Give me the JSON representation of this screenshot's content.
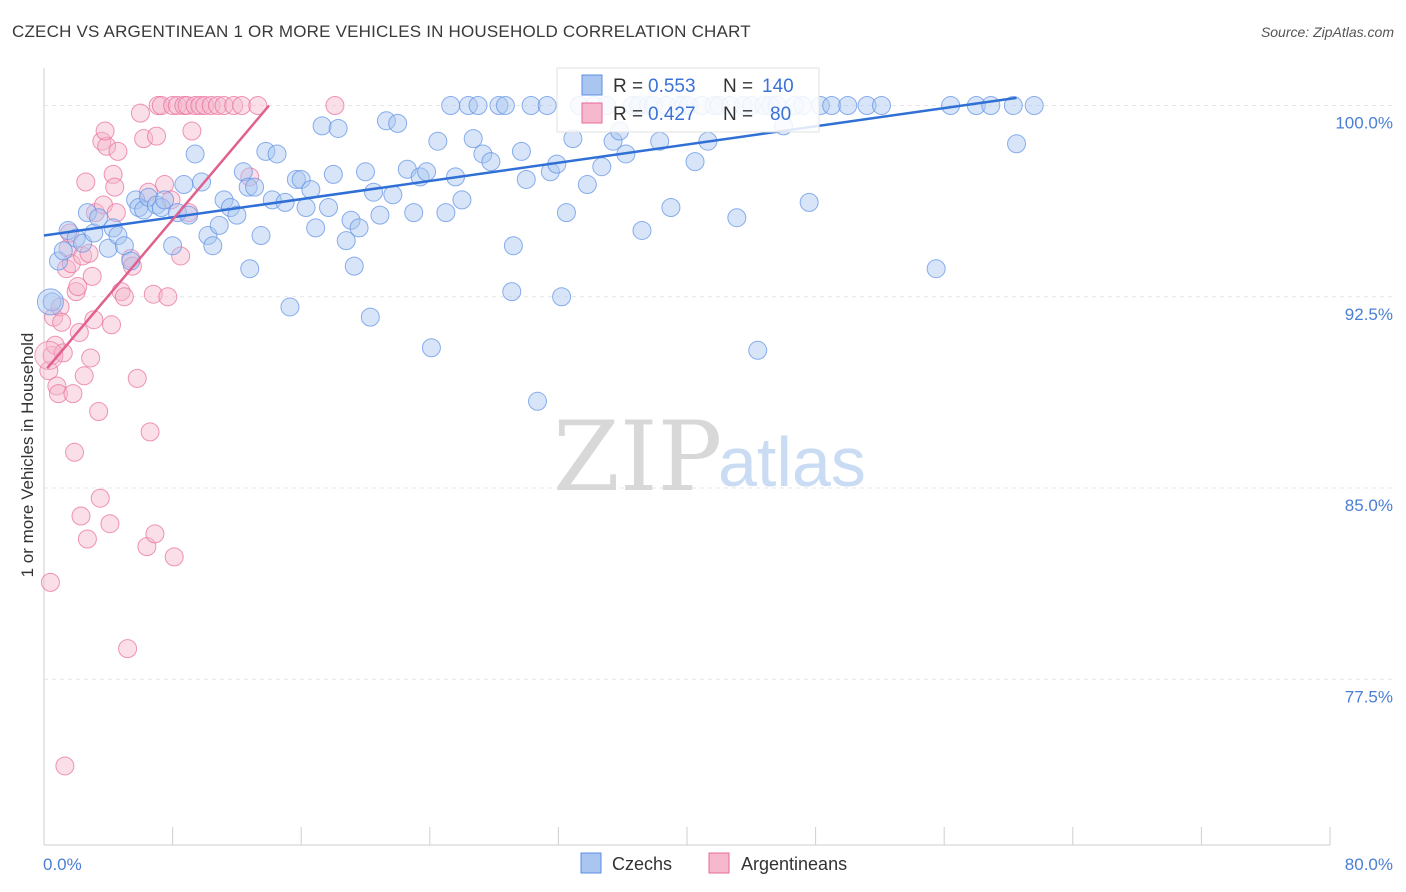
{
  "title": "CZECH VS ARGENTINEAN 1 OR MORE VEHICLES IN HOUSEHOLD CORRELATION CHART",
  "source": "Source: ZipAtlas.com",
  "watermark": {
    "zip": "ZIP",
    "atlas": "atlas"
  },
  "colors": {
    "blue": "#5b8ee6",
    "blue_fill": "#a9c6f0",
    "pink": "#e96a9a",
    "pink_fill": "#f5b8cc",
    "axis_text": "#4a7fd4"
  },
  "legend": {
    "blue": {
      "r_label": "R =",
      "r_value": "0.553",
      "n_label": "N =",
      "n_value": "140"
    },
    "pink": {
      "r_label": "R =",
      "r_value": "0.427",
      "n_label": "N =",
      "n_value": "80"
    }
  },
  "chart_data": {
    "type": "scatter",
    "title": "CZECH VS ARGENTINEAN 1 OR MORE VEHICLES IN HOUSEHOLD CORRELATION CHART",
    "xlabel": "",
    "ylabel": "1 or more Vehicles in Household",
    "xlim": [
      0,
      80
    ],
    "ylim": [
      71,
      101
    ],
    "x_tick_labels": [
      "0.0%",
      "80.0%"
    ],
    "y_ticks": [
      77.5,
      85.0,
      92.5,
      100.0
    ],
    "y_tick_labels": [
      "77.5%",
      "85.0%",
      "92.5%",
      "100.0%"
    ],
    "series": [
      {
        "name": "Czechs",
        "color": "#5b8ee6",
        "trend": {
          "x": [
            0,
            60.5
          ],
          "y": [
            94.9,
            100.3
          ]
        },
        "points": [
          [
            0.5,
            92.3
          ],
          [
            0.9,
            93.9
          ],
          [
            1.2,
            94.3
          ],
          [
            1.5,
            95.1
          ],
          [
            2.0,
            94.8
          ],
          [
            2.4,
            94.6
          ],
          [
            2.7,
            95.8
          ],
          [
            3.1,
            95.0
          ],
          [
            3.4,
            95.6
          ],
          [
            4.0,
            94.4
          ],
          [
            4.3,
            95.2
          ],
          [
            4.6,
            94.9
          ],
          [
            5.0,
            94.5
          ],
          [
            5.4,
            93.9
          ],
          [
            5.7,
            96.3
          ],
          [
            5.9,
            96.0
          ],
          [
            6.2,
            95.9
          ],
          [
            6.5,
            96.4
          ],
          [
            7.0,
            96.1
          ],
          [
            7.3,
            96.0
          ],
          [
            7.5,
            96.3
          ],
          [
            8.0,
            94.5
          ],
          [
            8.3,
            95.8
          ],
          [
            8.7,
            96.9
          ],
          [
            9.0,
            95.7
          ],
          [
            9.4,
            98.1
          ],
          [
            9.8,
            97.0
          ],
          [
            10.2,
            94.9
          ],
          [
            10.5,
            94.5
          ],
          [
            10.9,
            95.3
          ],
          [
            11.2,
            96.3
          ],
          [
            11.6,
            96.0
          ],
          [
            12.0,
            95.7
          ],
          [
            12.4,
            97.4
          ],
          [
            12.7,
            96.8
          ],
          [
            12.8,
            93.6
          ],
          [
            13.1,
            96.8
          ],
          [
            13.5,
            94.9
          ],
          [
            13.8,
            98.2
          ],
          [
            14.2,
            96.3
          ],
          [
            14.5,
            98.1
          ],
          [
            15.0,
            96.2
          ],
          [
            15.3,
            92.1
          ],
          [
            15.7,
            97.1
          ],
          [
            16.0,
            97.1
          ],
          [
            16.3,
            96.0
          ],
          [
            16.6,
            96.7
          ],
          [
            16.9,
            95.2
          ],
          [
            17.3,
            99.2
          ],
          [
            17.7,
            96.0
          ],
          [
            18.0,
            97.3
          ],
          [
            18.3,
            99.1
          ],
          [
            18.8,
            94.7
          ],
          [
            19.1,
            95.5
          ],
          [
            19.3,
            93.7
          ],
          [
            19.6,
            95.2
          ],
          [
            20.0,
            97.4
          ],
          [
            20.3,
            91.7
          ],
          [
            20.5,
            96.6
          ],
          [
            20.9,
            95.7
          ],
          [
            21.3,
            99.4
          ],
          [
            21.7,
            96.5
          ],
          [
            22.0,
            99.3
          ],
          [
            22.6,
            97.5
          ],
          [
            23.0,
            95.8
          ],
          [
            23.4,
            97.2
          ],
          [
            23.8,
            97.4
          ],
          [
            24.1,
            90.5
          ],
          [
            24.5,
            98.6
          ],
          [
            25.0,
            95.8
          ],
          [
            25.3,
            100.0
          ],
          [
            25.6,
            97.2
          ],
          [
            26.0,
            96.3
          ],
          [
            26.4,
            100.0
          ],
          [
            26.7,
            98.7
          ],
          [
            27.0,
            100.0
          ],
          [
            27.3,
            98.1
          ],
          [
            27.8,
            97.8
          ],
          [
            28.3,
            100.0
          ],
          [
            28.7,
            100.0
          ],
          [
            29.2,
            94.5
          ],
          [
            29.1,
            92.7
          ],
          [
            29.7,
            98.2
          ],
          [
            30.0,
            97.1
          ],
          [
            30.3,
            100.0
          ],
          [
            30.7,
            88.4
          ],
          [
            31.3,
            100.0
          ],
          [
            31.5,
            97.4
          ],
          [
            31.9,
            97.7
          ],
          [
            32.2,
            92.5
          ],
          [
            32.5,
            95.8
          ],
          [
            32.9,
            98.7
          ],
          [
            33.3,
            100.0
          ],
          [
            33.8,
            96.9
          ],
          [
            34.2,
            100.0
          ],
          [
            34.7,
            97.6
          ],
          [
            35.0,
            100.0
          ],
          [
            35.4,
            98.6
          ],
          [
            35.8,
            99.0
          ],
          [
            36.2,
            98.1
          ],
          [
            36.6,
            100.0
          ],
          [
            37.0,
            100.0
          ],
          [
            37.2,
            95.1
          ],
          [
            37.6,
            100.0
          ],
          [
            37.9,
            100.0
          ],
          [
            38.3,
            98.6
          ],
          [
            38.7,
            100.0
          ],
          [
            39.0,
            96.0
          ],
          [
            39.5,
            100.0
          ],
          [
            39.8,
            100.0
          ],
          [
            40.1,
            100.0
          ],
          [
            40.5,
            97.8
          ],
          [
            40.9,
            100.0
          ],
          [
            41.3,
            98.6
          ],
          [
            41.7,
            100.0
          ],
          [
            42.0,
            100.0
          ],
          [
            42.7,
            100.0
          ],
          [
            43.1,
            95.6
          ],
          [
            43.5,
            100.0
          ],
          [
            44.0,
            100.0
          ],
          [
            44.4,
            90.4
          ],
          [
            44.8,
            100.0
          ],
          [
            45.2,
            100.0
          ],
          [
            45.6,
            100.0
          ],
          [
            46.0,
            99.2
          ],
          [
            46.7,
            100.0
          ],
          [
            47.2,
            100.0
          ],
          [
            47.6,
            96.2
          ],
          [
            48.3,
            100.0
          ],
          [
            49.0,
            100.0
          ],
          [
            50.0,
            100.0
          ],
          [
            51.2,
            100.0
          ],
          [
            52.1,
            100.0
          ],
          [
            55.5,
            93.6
          ],
          [
            56.4,
            100.0
          ],
          [
            58.0,
            100.0
          ],
          [
            58.9,
            100.0
          ],
          [
            60.3,
            100.0
          ],
          [
            60.5,
            98.5
          ],
          [
            61.6,
            100.0
          ]
        ]
      },
      {
        "name": "Argentineans",
        "color": "#e96a9a",
        "trend": {
          "x": [
            0.2,
            14.0
          ],
          "y": [
            89.7,
            100.0
          ]
        },
        "points": [
          [
            0.3,
            89.6
          ],
          [
            0.4,
            81.3
          ],
          [
            0.5,
            90.2
          ],
          [
            0.6,
            91.7
          ],
          [
            0.7,
            90.6
          ],
          [
            0.8,
            89.0
          ],
          [
            0.9,
            88.7
          ],
          [
            1.0,
            92.1
          ],
          [
            1.1,
            91.5
          ],
          [
            1.2,
            90.3
          ],
          [
            1.4,
            93.6
          ],
          [
            1.5,
            94.4
          ],
          [
            1.6,
            95.0
          ],
          [
            1.7,
            93.8
          ],
          [
            1.8,
            88.7
          ],
          [
            1.9,
            86.4
          ],
          [
            2.0,
            92.7
          ],
          [
            2.1,
            92.9
          ],
          [
            2.2,
            91.1
          ],
          [
            2.3,
            83.9
          ],
          [
            2.4,
            94.1
          ],
          [
            2.5,
            89.4
          ],
          [
            2.6,
            97.0
          ],
          [
            2.7,
            83.0
          ],
          [
            2.8,
            94.2
          ],
          [
            2.9,
            90.1
          ],
          [
            3.0,
            93.3
          ],
          [
            3.1,
            91.6
          ],
          [
            3.2,
            95.8
          ],
          [
            3.4,
            88.0
          ],
          [
            3.5,
            84.6
          ],
          [
            3.6,
            98.6
          ],
          [
            3.7,
            96.1
          ],
          [
            3.9,
            98.4
          ],
          [
            4.1,
            83.6
          ],
          [
            4.2,
            91.4
          ],
          [
            4.3,
            97.3
          ],
          [
            4.4,
            96.8
          ],
          [
            4.5,
            95.8
          ],
          [
            4.6,
            98.2
          ],
          [
            4.8,
            92.7
          ],
          [
            5.0,
            92.5
          ],
          [
            5.2,
            78.7
          ],
          [
            5.4,
            94.0
          ],
          [
            5.5,
            93.7
          ],
          [
            5.8,
            89.3
          ],
          [
            6.0,
            99.7
          ],
          [
            6.2,
            98.7
          ],
          [
            6.4,
            82.7
          ],
          [
            6.5,
            96.6
          ],
          [
            6.6,
            87.2
          ],
          [
            6.8,
            92.6
          ],
          [
            6.9,
            83.2
          ],
          [
            7.0,
            98.8
          ],
          [
            7.1,
            100.0
          ],
          [
            7.3,
            100.0
          ],
          [
            7.5,
            96.9
          ],
          [
            7.7,
            92.5
          ],
          [
            7.9,
            96.3
          ],
          [
            8.0,
            100.0
          ],
          [
            8.1,
            82.3
          ],
          [
            8.3,
            100.0
          ],
          [
            8.5,
            94.1
          ],
          [
            8.7,
            100.0
          ],
          [
            8.9,
            100.0
          ],
          [
            9.0,
            95.8
          ],
          [
            9.2,
            99.0
          ],
          [
            9.4,
            100.0
          ],
          [
            9.7,
            100.0
          ],
          [
            10.0,
            100.0
          ],
          [
            10.4,
            100.0
          ],
          [
            10.8,
            100.0
          ],
          [
            11.2,
            100.0
          ],
          [
            11.8,
            100.0
          ],
          [
            12.3,
            100.0
          ],
          [
            12.8,
            97.2
          ],
          [
            13.3,
            100.0
          ],
          [
            18.1,
            100.0
          ],
          [
            3.8,
            99.0
          ],
          [
            1.3,
            74.1
          ]
        ]
      }
    ]
  },
  "bottom_legend": {
    "czechs": "Czechs",
    "argentineans": "Argentineans"
  }
}
